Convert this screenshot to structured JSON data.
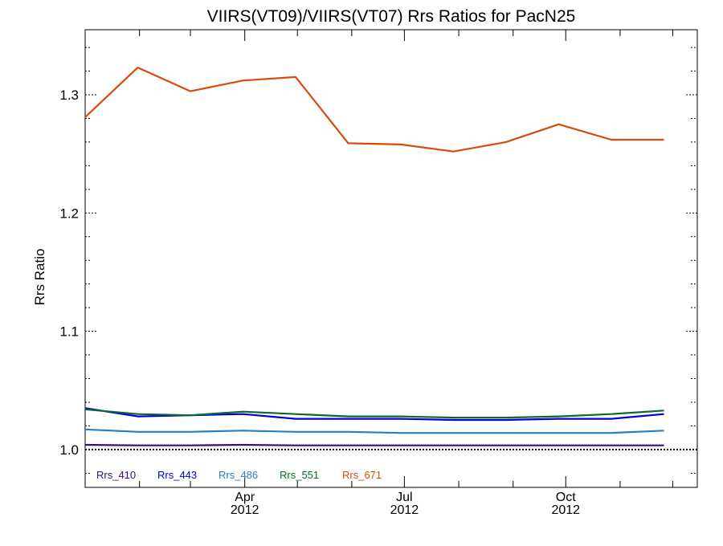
{
  "chart_data": {
    "type": "line",
    "title": "VIIRS(VT09)/VIIRS(VT07)  Rrs Ratios for PacN25",
    "xlabel": "",
    "ylabel": "Rrs Ratio",
    "x_dates": [
      "2012-01-01",
      "2012-01-31",
      "2012-03-01",
      "2012-03-31",
      "2012-04-30",
      "2012-05-30",
      "2012-06-29",
      "2012-07-29",
      "2012-08-28",
      "2012-09-27",
      "2012-10-27",
      "2012-11-26"
    ],
    "xlim": [
      "2012-01-01",
      "2012-12-15"
    ],
    "x_ticks": [
      {
        "date": "2012-04-01",
        "month": "Apr",
        "year": "2012"
      },
      {
        "date": "2012-07-01",
        "month": "Jul",
        "year": "2012"
      },
      {
        "date": "2012-10-01",
        "month": "Oct",
        "year": "2012"
      }
    ],
    "ylim": [
      0.968,
      1.355
    ],
    "y_ticks": [
      "1.0",
      "1.1",
      "1.2",
      "1.3"
    ],
    "reference_line": 1.0,
    "legend_position": "bottom-left, inside plot",
    "series": [
      {
        "name": "Rrs_410",
        "color": "#3b0f70",
        "values": [
          1.004,
          1.0035,
          1.0035,
          1.004,
          1.0035,
          1.0035,
          1.0035,
          1.0035,
          1.0035,
          1.0035,
          1.0035,
          1.0035
        ]
      },
      {
        "name": "Rrs_443",
        "color": "#0000d8",
        "values": [
          1.035,
          1.028,
          1.029,
          1.03,
          1.026,
          1.026,
          1.026,
          1.025,
          1.025,
          1.026,
          1.026,
          1.03
        ]
      },
      {
        "name": "Rrs_486",
        "color": "#2a7fc0",
        "values": [
          1.017,
          1.015,
          1.015,
          1.016,
          1.015,
          1.015,
          1.014,
          1.014,
          1.014,
          1.014,
          1.014,
          1.016
        ]
      },
      {
        "name": "Rrs_551",
        "color": "#0a6a2e",
        "values": [
          1.034,
          1.03,
          1.029,
          1.032,
          1.03,
          1.028,
          1.028,
          1.027,
          1.027,
          1.028,
          1.03,
          1.033
        ]
      },
      {
        "name": "Rrs_671",
        "color": "#d84a0c",
        "values": [
          1.281,
          1.323,
          1.303,
          1.312,
          1.315,
          1.259,
          1.258,
          1.252,
          1.26,
          1.275,
          1.262,
          1.262
        ]
      }
    ]
  }
}
